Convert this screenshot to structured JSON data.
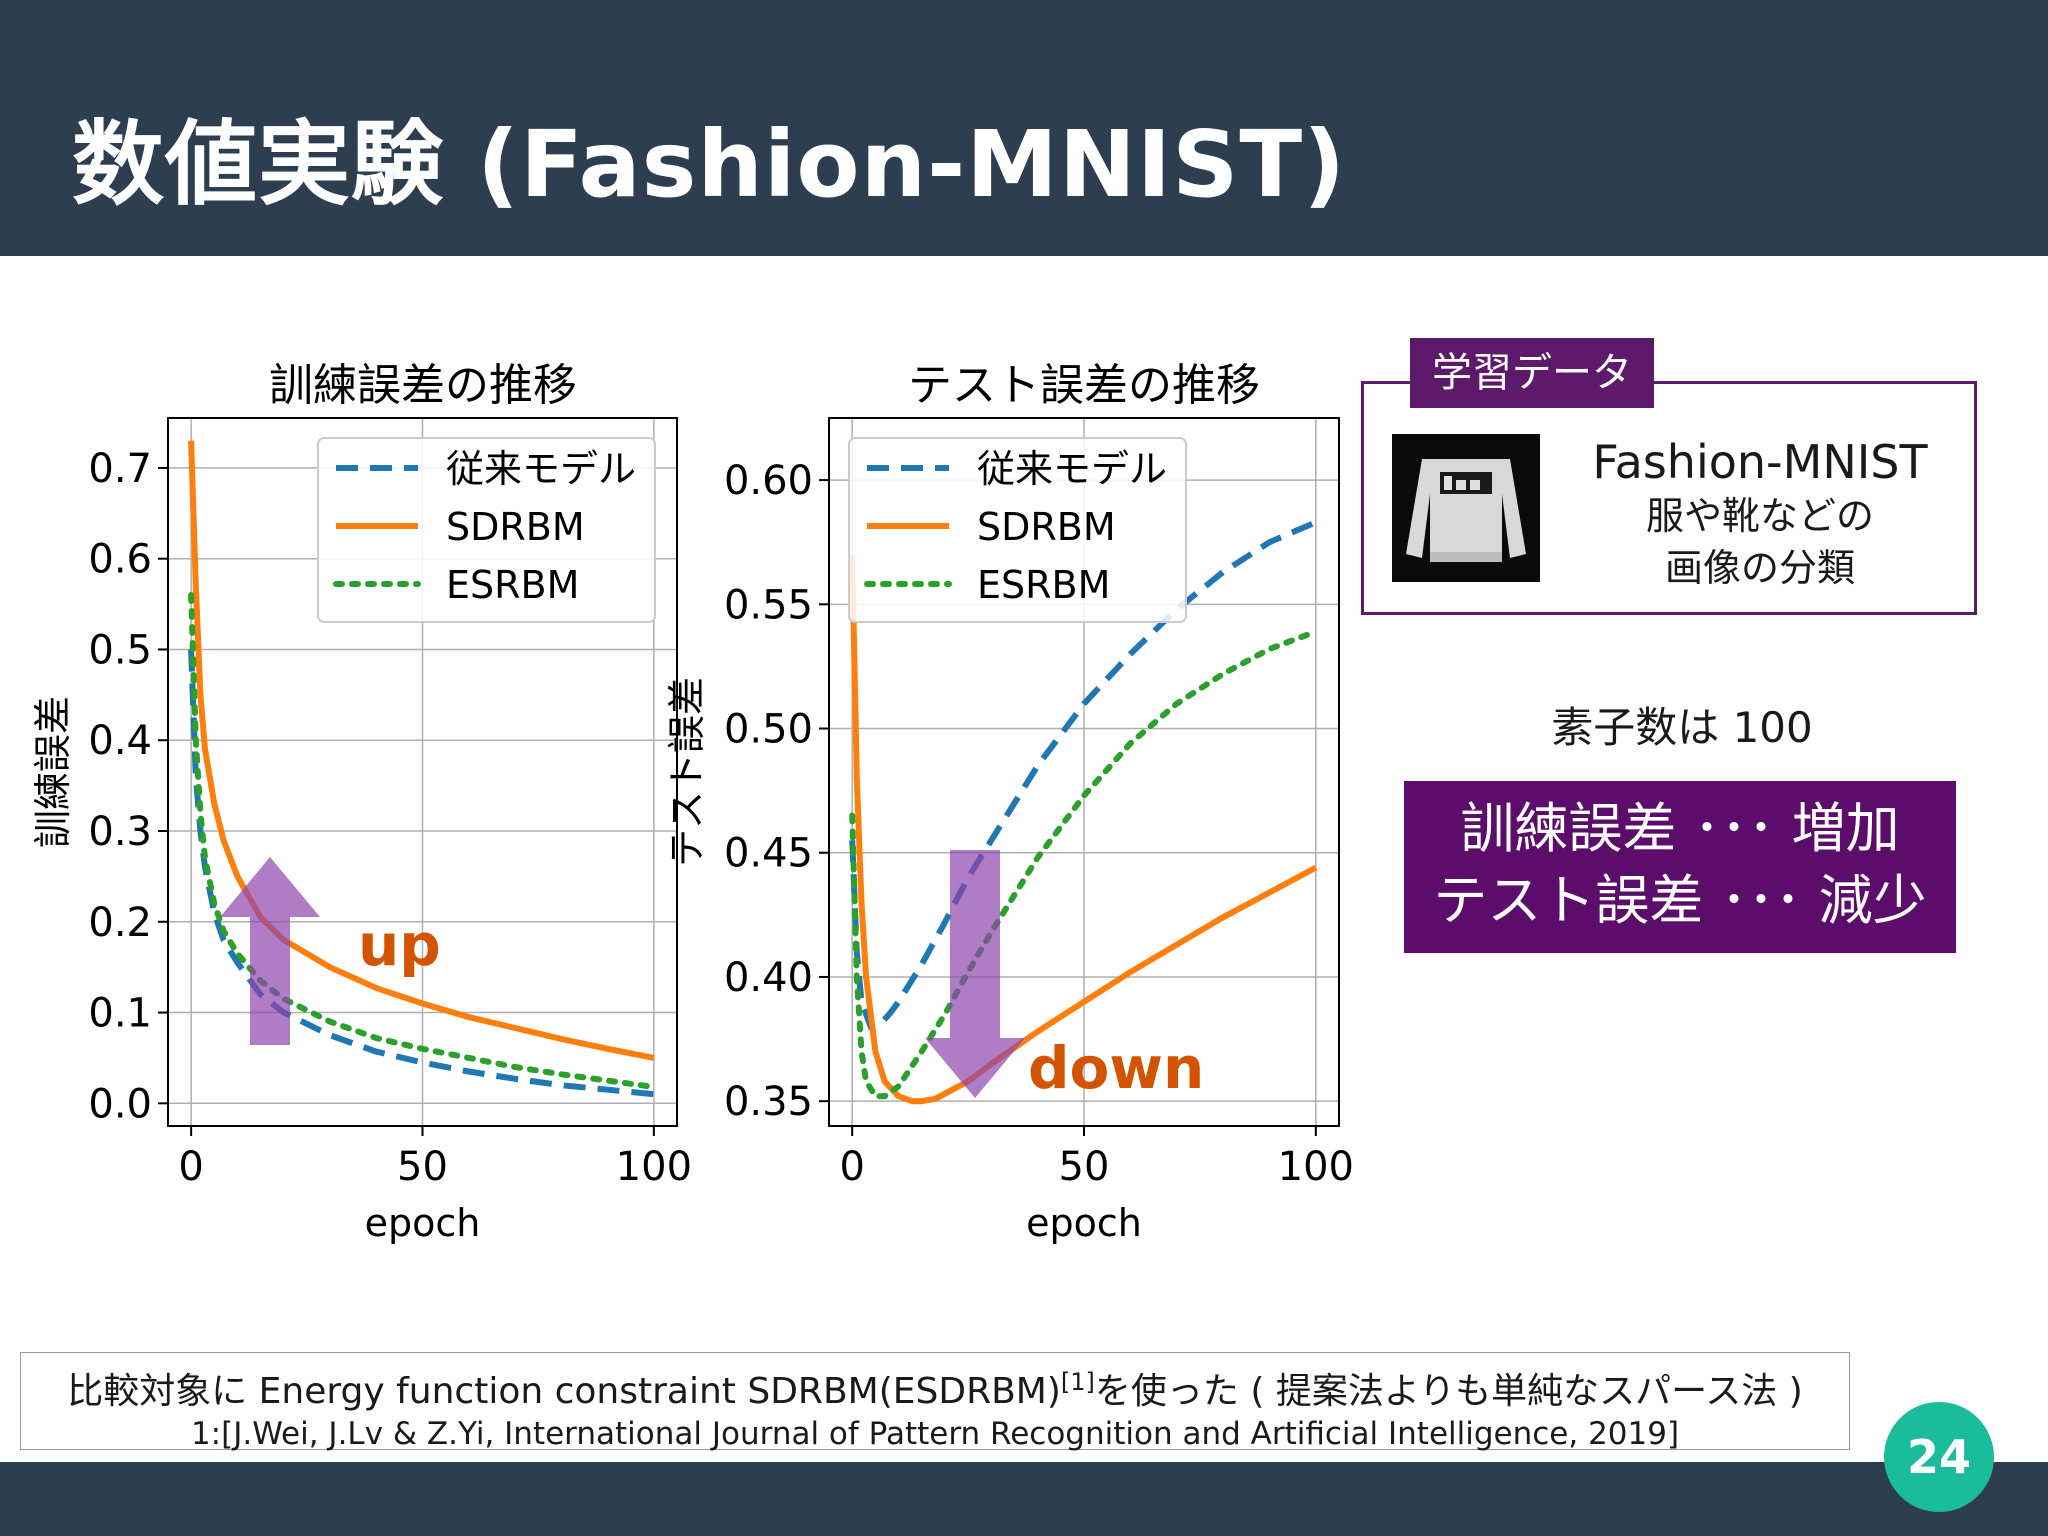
{
  "slide": {
    "title": "数値実験 (Fashion-MNIST)",
    "page_number": "24"
  },
  "training_data": {
    "tag": "学習データ",
    "dataset_name": "Fashion-MNIST",
    "description_line1": "服や靴などの",
    "description_line2": "画像の分類"
  },
  "neuron_count": "素子数は 100",
  "result_box": {
    "line1": "訓練誤差 ･･･ 増加",
    "line2": "テスト誤差 ･･･ 減少"
  },
  "citation": {
    "line1_main": "比較対象に Energy function constraint SDRBM(ESDRBM)",
    "line1_ref": "[1]",
    "line1_rest": "を使った ( 提案法よりも単純なスパース法 )",
    "line2": "1:[J.Wei, J.Lv & Z.Yi, International Journal of Pattern Recognition and Artificial Intelligence, 2019]"
  },
  "annotations": {
    "left_arrow_label": "up",
    "right_arrow_label": "down"
  },
  "colors": {
    "header": "#2c3e50",
    "accent": "#5c0c6b",
    "page_badge": "#1abc9c",
    "series_conventional": "#1f77b4",
    "series_sdrbm": "#ff7f0e",
    "series_esrbm": "#2ca02c",
    "arrow": "#8e44ad",
    "annotation_text": "#d35400"
  },
  "chart_data": [
    {
      "type": "line",
      "title": "訓練誤差の推移",
      "xlabel": "epoch",
      "ylabel": "訓練誤差",
      "xlim": [
        -5,
        105
      ],
      "ylim": [
        -0.025,
        0.755
      ],
      "xticks": [
        0,
        50,
        100
      ],
      "xtick_labels": [
        "0",
        "50",
        "100"
      ],
      "yticks": [
        0.0,
        0.1,
        0.2,
        0.3,
        0.4,
        0.5,
        0.6,
        0.7
      ],
      "ytick_labels": [
        "0.0",
        "0.1",
        "0.2",
        "0.3",
        "0.4",
        "0.5",
        "0.6",
        "0.7"
      ],
      "grid": true,
      "legend_position": "top-right",
      "series": [
        {
          "name": "従来モデル",
          "style": "dashed",
          "x": [
            0,
            1,
            2,
            3,
            5,
            7,
            10,
            15,
            20,
            30,
            40,
            50,
            60,
            70,
            80,
            90,
            100
          ],
          "y": [
            0.5,
            0.36,
            0.3,
            0.26,
            0.21,
            0.18,
            0.155,
            0.12,
            0.1,
            0.075,
            0.057,
            0.045,
            0.035,
            0.027,
            0.02,
            0.015,
            0.01
          ]
        },
        {
          "name": "SDRBM",
          "style": "solid",
          "x": [
            0,
            1,
            2,
            3,
            5,
            7,
            10,
            15,
            20,
            30,
            40,
            50,
            60,
            70,
            80,
            90,
            100
          ],
          "y": [
            0.73,
            0.57,
            0.45,
            0.39,
            0.33,
            0.29,
            0.25,
            0.205,
            0.18,
            0.15,
            0.127,
            0.11,
            0.095,
            0.083,
            0.071,
            0.06,
            0.05
          ]
        },
        {
          "name": "ESRBM",
          "style": "dotted",
          "x": [
            0,
            1,
            2,
            3,
            5,
            7,
            10,
            15,
            20,
            30,
            40,
            50,
            60,
            70,
            80,
            90,
            100
          ],
          "y": [
            0.56,
            0.4,
            0.32,
            0.27,
            0.22,
            0.19,
            0.165,
            0.135,
            0.115,
            0.09,
            0.072,
            0.06,
            0.05,
            0.04,
            0.032,
            0.025,
            0.018
          ]
        }
      ]
    },
    {
      "type": "line",
      "title": "テスト誤差の推移",
      "xlabel": "epoch",
      "ylabel": "テスト誤差",
      "xlim": [
        -5,
        105
      ],
      "ylim": [
        0.34,
        0.625
      ],
      "xticks": [
        0,
        50,
        100
      ],
      "xtick_labels": [
        "0",
        "50",
        "100"
      ],
      "yticks": [
        0.35,
        0.4,
        0.45,
        0.5,
        0.55,
        0.6
      ],
      "ytick_labels": [
        "0.35",
        "0.40",
        "0.45",
        "0.50",
        "0.55",
        "0.60"
      ],
      "grid": true,
      "legend_position": "top-left",
      "series": [
        {
          "name": "従来モデル",
          "style": "dashed",
          "x": [
            0,
            1,
            2,
            4,
            6,
            8,
            10,
            15,
            20,
            25,
            30,
            40,
            50,
            60,
            70,
            80,
            90,
            100
          ],
          "y": [
            0.455,
            0.41,
            0.39,
            0.38,
            0.381,
            0.385,
            0.39,
            0.405,
            0.422,
            0.44,
            0.455,
            0.485,
            0.51,
            0.53,
            0.548,
            0.563,
            0.575,
            0.583
          ]
        },
        {
          "name": "SDRBM",
          "style": "solid",
          "x": [
            0,
            1,
            2,
            3,
            5,
            7,
            10,
            13,
            15,
            18,
            20,
            25,
            30,
            40,
            50,
            60,
            70,
            80,
            90,
            100
          ],
          "y": [
            0.57,
            0.48,
            0.43,
            0.4,
            0.37,
            0.358,
            0.352,
            0.35,
            0.35,
            0.351,
            0.353,
            0.358,
            0.365,
            0.378,
            0.39,
            0.402,
            0.413,
            0.424,
            0.434,
            0.444
          ]
        },
        {
          "name": "ESRBM",
          "style": "dotted",
          "x": [
            0,
            1,
            2,
            3,
            5,
            7,
            10,
            15,
            20,
            25,
            30,
            40,
            50,
            60,
            70,
            80,
            90,
            100
          ],
          "y": [
            0.465,
            0.4,
            0.37,
            0.358,
            0.352,
            0.352,
            0.356,
            0.37,
            0.385,
            0.402,
            0.418,
            0.448,
            0.473,
            0.494,
            0.51,
            0.522,
            0.532,
            0.539
          ]
        }
      ]
    }
  ]
}
